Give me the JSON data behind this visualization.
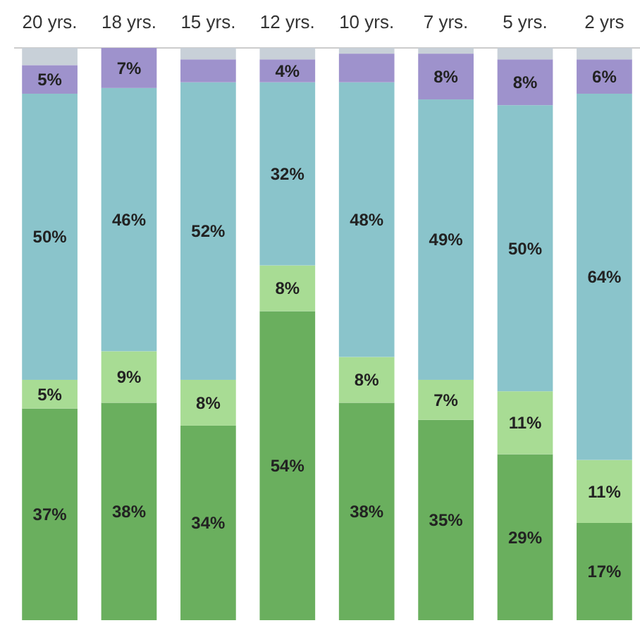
{
  "chart_data": {
    "type": "bar",
    "stacked": true,
    "categories": [
      "20 yrs.",
      "18 yrs.",
      "15 yrs.",
      "12 yrs.",
      "10 yrs.",
      "7 yrs.",
      "5 yrs.",
      "2 yrs"
    ],
    "ylim": [
      0,
      100
    ],
    "tick_labels": "x",
    "series": [
      {
        "color": "#6aaf5e",
        "values": [
          37,
          38,
          34,
          54,
          38,
          35,
          29,
          17
        ],
        "value_labels": [
          "37%",
          "38%",
          "34%",
          "54%",
          "38%",
          "35%",
          "29%",
          "17%"
        ]
      },
      {
        "color": "#a8dc94",
        "values": [
          5,
          9,
          8,
          8,
          8,
          7,
          11,
          11
        ],
        "value_labels": [
          "5%",
          "9%",
          "8%",
          "8%",
          "8%",
          "7%",
          "11%",
          "11%"
        ]
      },
      {
        "color": "#8ac4cb",
        "values": [
          50,
          46,
          52,
          32,
          48,
          49,
          50,
          64
        ],
        "value_labels": [
          "50%",
          "46%",
          "52%",
          "32%",
          "48%",
          "49%",
          "50%",
          "64%"
        ]
      },
      {
        "color": "#9e92cc",
        "values": [
          5,
          7,
          4,
          4,
          5,
          8,
          8,
          6
        ],
        "value_labels": [
          "5%",
          "7%",
          null,
          "4%",
          null,
          "8%",
          "8%",
          "6%"
        ]
      },
      {
        "color": "#c8d0d8",
        "values": [
          3,
          0,
          2,
          2,
          1,
          1,
          2,
          2
        ],
        "value_labels": [
          null,
          null,
          null,
          null,
          null,
          null,
          null,
          null
        ]
      }
    ]
  }
}
